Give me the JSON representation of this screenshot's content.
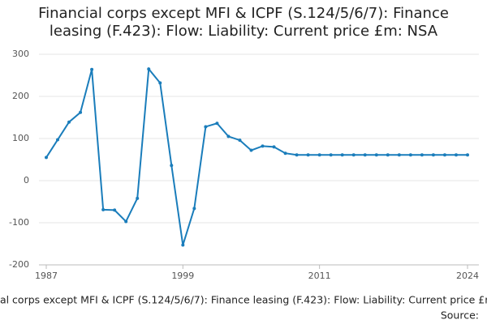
{
  "chart_data": {
    "type": "line",
    "title": "Financial corps except MFI & ICPF (S.124/5/6/7): Finance leasing (F.423): Flow: Liability: Current price £m: NSA",
    "source": "Source:",
    "x": [
      1987,
      1988,
      1989,
      1990,
      1991,
      1992,
      1993,
      1994,
      1995,
      1996,
      1997,
      1998,
      1999,
      2000,
      2001,
      2002,
      2003,
      2004,
      2005,
      2006,
      2007,
      2008,
      2009,
      2010,
      2011,
      2012,
      2013,
      2014,
      2015,
      2016,
      2017,
      2018,
      2019,
      2020,
      2021,
      2022,
      2023,
      2024
    ],
    "series": [
      {
        "name": "Finance leasing",
        "color": "#1a7dbb",
        "values": [
          55,
          97,
          139,
          162,
          264,
          -69,
          -70,
          -97,
          -42,
          265,
          232,
          36,
          -153,
          -66,
          128,
          136,
          105,
          96,
          72,
          82,
          80,
          65,
          61,
          61,
          61,
          61,
          61,
          61,
          61,
          61,
          61,
          61,
          61,
          61,
          61,
          61,
          61,
          61
        ]
      }
    ],
    "xlim": [
      1987,
      2024
    ],
    "xticks": [
      1987,
      1999,
      2011,
      2024
    ],
    "ylim": [
      -200,
      300
    ],
    "yticks": [
      -200,
      -100,
      0,
      100,
      200,
      300
    ],
    "grid": true
  }
}
